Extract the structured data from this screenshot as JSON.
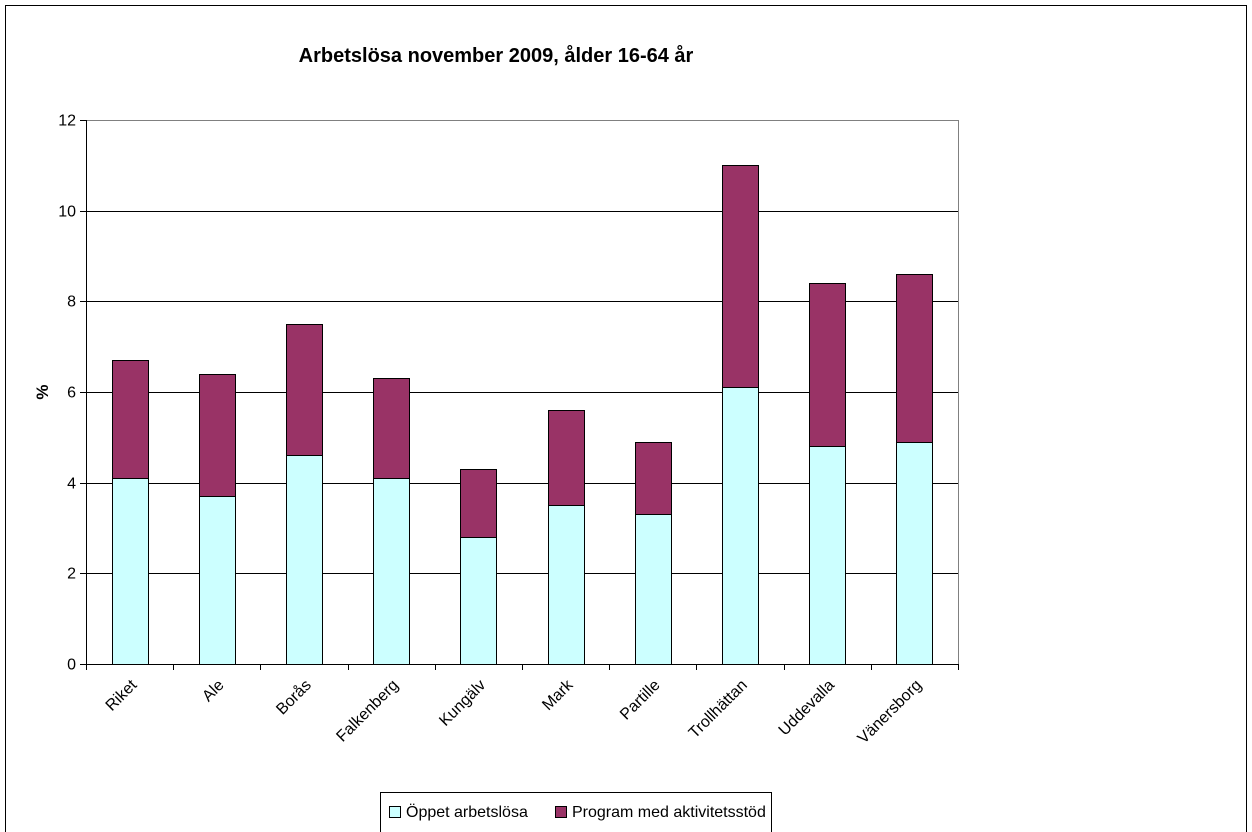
{
  "chart_data": {
    "type": "bar",
    "stacked": true,
    "title": "Arbetslösa november 2009, ålder 16-64 år",
    "xlabel": "",
    "ylabel": "%",
    "categories": [
      "Riket",
      "Ale",
      "Borås",
      "Falkenberg",
      "Kungälv",
      "Mark",
      "Partille",
      "Trollhättan",
      "Uddevalla",
      "Vänersborg"
    ],
    "series": [
      {
        "name": "Öppet arbetslösa",
        "color": "#CCFFFF",
        "values": [
          4.1,
          3.7,
          4.6,
          4.1,
          2.8,
          3.5,
          3.3,
          6.1,
          4.8,
          4.9
        ]
      },
      {
        "name": "Program med aktivitetsstöd",
        "color": "#993366",
        "values": [
          2.6,
          2.7,
          2.9,
          2.2,
          1.5,
          2.1,
          1.6,
          4.9,
          3.6,
          3.7
        ]
      }
    ],
    "ylim": [
      0,
      12
    ],
    "yticks": [
      0,
      2,
      4,
      6,
      8,
      10,
      12
    ],
    "grid": true,
    "legend_position": "bottom"
  }
}
